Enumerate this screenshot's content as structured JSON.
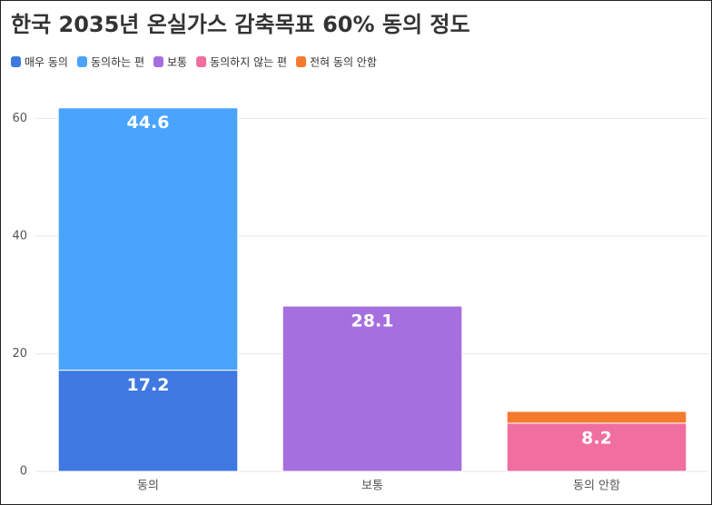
{
  "chart_data": {
    "type": "stacked_bar",
    "title": "한국 2035년 온실가스 감축목표 60% 동의 정도",
    "categories": [
      "동의",
      "보통",
      "동의 안함"
    ],
    "series": [
      {
        "name": "매우 동의",
        "color": "#3f78e0",
        "values": [
          17.2,
          null,
          null
        ]
      },
      {
        "name": "동의하는 편",
        "color": "#4aa4fe",
        "values": [
          44.6,
          null,
          null
        ]
      },
      {
        "name": "보통",
        "color": "#a66fe0",
        "values": [
          null,
          28.1,
          null
        ]
      },
      {
        "name": "동의하지 않는 편",
        "color": "#f06ea0",
        "values": [
          null,
          null,
          8.2
        ]
      },
      {
        "name": "전혀 동의 안함",
        "color": "#f47a2e",
        "values": [
          null,
          null,
          2.0
        ]
      }
    ],
    "labeled_series": [
      0,
      1,
      2,
      3
    ],
    "ylim": [
      0,
      65
    ],
    "yticks": [
      0,
      20,
      40,
      60
    ],
    "grid": true,
    "legend": "top-left"
  }
}
